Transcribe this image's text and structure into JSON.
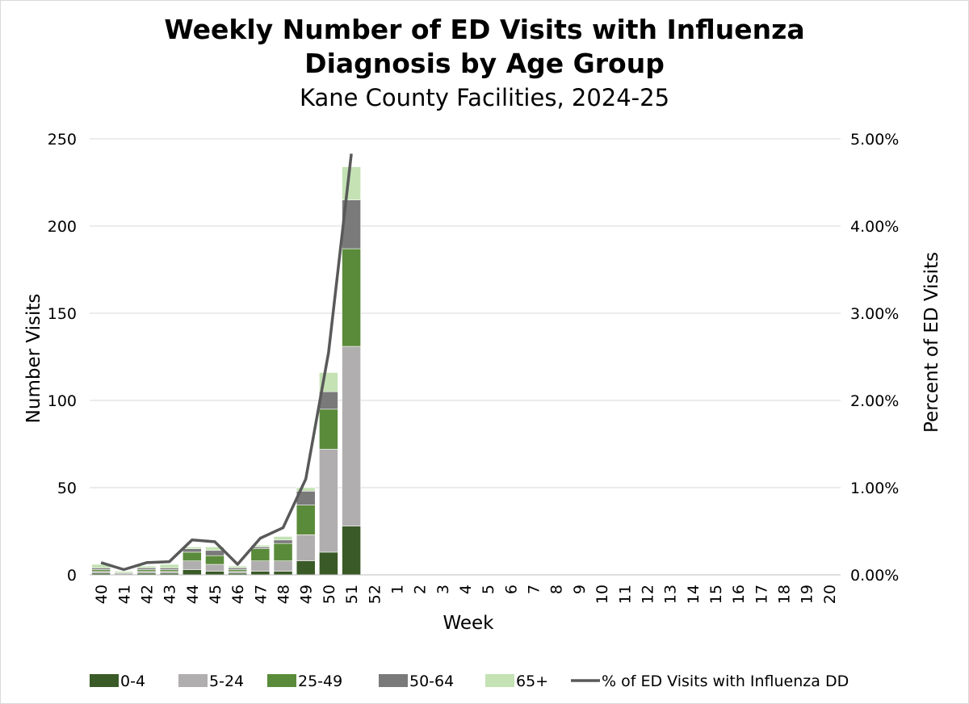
{
  "chart_data": {
    "type": "bar",
    "stacked": true,
    "title": "Weekly Number of ED Visits with Influenza Diagnosis by Age Group",
    "title_lines": [
      "Weekly Number of ED Visits with Influenza",
      "Diagnosis by Age Group"
    ],
    "subtitle": "Kane County Facilities, 2024-25",
    "xlabel": "Week",
    "ylabel": "Number Visits",
    "y2label": "Percent of ED Visits",
    "ylim": [
      0,
      250
    ],
    "y2lim": [
      0,
      5
    ],
    "yticks": [
      "0",
      "50",
      "100",
      "150",
      "200",
      "250"
    ],
    "y2ticks": [
      "0.00%",
      "1.00%",
      "2.00%",
      "3.00%",
      "4.00%",
      "5.00%"
    ],
    "grid": "horizontal",
    "legend_position": "bottom",
    "categories": [
      "40",
      "41",
      "42",
      "43",
      "44",
      "45",
      "46",
      "47",
      "48",
      "49",
      "50",
      "51",
      "52",
      "1",
      "2",
      "3",
      "4",
      "5",
      "6",
      "7",
      "8",
      "9",
      "10",
      "11",
      "12",
      "13",
      "14",
      "15",
      "16",
      "17",
      "18",
      "19",
      "20"
    ],
    "series": [
      {
        "name": "0-4",
        "kind": "bar",
        "color": "#3a5a27",
        "values": [
          1,
          0,
          1,
          1,
          3,
          2,
          1,
          2,
          2,
          8,
          13,
          28,
          null,
          null,
          null,
          null,
          null,
          null,
          null,
          null,
          null,
          null,
          null,
          null,
          null,
          null,
          null,
          null,
          null,
          null,
          null,
          null,
          null
        ]
      },
      {
        "name": "5-24",
        "kind": "bar",
        "color": "#b0aeae",
        "values": [
          1,
          1,
          1,
          1,
          5,
          4,
          1,
          6,
          6,
          15,
          59,
          103,
          null,
          null,
          null,
          null,
          null,
          null,
          null,
          null,
          null,
          null,
          null,
          null,
          null,
          null,
          null,
          null,
          null,
          null,
          null,
          null,
          null
        ]
      },
      {
        "name": "25-49",
        "kind": "bar",
        "color": "#5a8b3a",
        "values": [
          1,
          0,
          1,
          1,
          5,
          5,
          1,
          7,
          10,
          17,
          23,
          56,
          null,
          null,
          null,
          null,
          null,
          null,
          null,
          null,
          null,
          null,
          null,
          null,
          null,
          null,
          null,
          null,
          null,
          null,
          null,
          null,
          null
        ]
      },
      {
        "name": "50-64",
        "kind": "bar",
        "color": "#7a7a7a",
        "values": [
          1,
          0,
          1,
          1,
          2,
          3,
          1,
          1,
          2,
          8,
          10,
          28,
          null,
          null,
          null,
          null,
          null,
          null,
          null,
          null,
          null,
          null,
          null,
          null,
          null,
          null,
          null,
          null,
          null,
          null,
          null,
          null,
          null
        ]
      },
      {
        "name": "65+",
        "kind": "bar",
        "color": "#c4e2b4",
        "values": [
          2,
          1,
          1,
          2,
          1,
          2,
          1,
          1,
          2,
          2,
          11,
          19,
          null,
          null,
          null,
          null,
          null,
          null,
          null,
          null,
          null,
          null,
          null,
          null,
          null,
          null,
          null,
          null,
          null,
          null,
          null,
          null,
          null
        ]
      },
      {
        "name": "% of ED Visits with Influenza DD",
        "kind": "line",
        "axis": "right",
        "color": "#595959",
        "values": [
          0.14,
          0.06,
          0.14,
          0.15,
          0.4,
          0.38,
          0.12,
          0.42,
          0.54,
          1.1,
          2.55,
          4.83,
          null,
          null,
          null,
          null,
          null,
          null,
          null,
          null,
          null,
          null,
          null,
          null,
          null,
          null,
          null,
          null,
          null,
          null,
          null,
          null,
          null
        ]
      }
    ]
  }
}
